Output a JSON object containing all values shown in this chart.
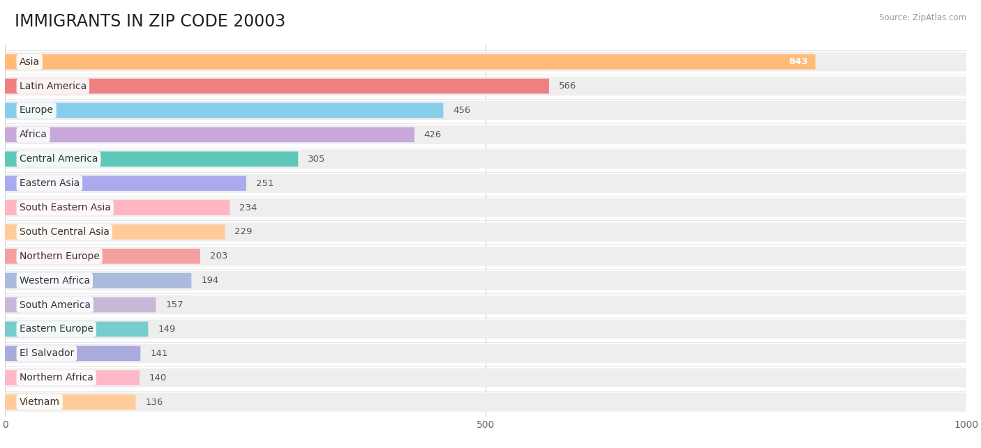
{
  "title": "IMMIGRANTS IN ZIP CODE 20003",
  "source": "Source: ZipAtlas.com",
  "categories": [
    "Asia",
    "Latin America",
    "Europe",
    "Africa",
    "Central America",
    "Eastern Asia",
    "South Eastern Asia",
    "South Central Asia",
    "Northern Europe",
    "Western Africa",
    "South America",
    "Eastern Europe",
    "El Salvador",
    "Northern Africa",
    "Vietnam"
  ],
  "values": [
    843,
    566,
    456,
    426,
    305,
    251,
    234,
    229,
    203,
    194,
    157,
    149,
    141,
    140,
    136
  ],
  "bar_colors": [
    "#FFBB77",
    "#F08080",
    "#87CEEB",
    "#C8A8D8",
    "#5EC8B8",
    "#AAAAEE",
    "#FFB6C1",
    "#FFCC99",
    "#F4A0A0",
    "#AABBDD",
    "#C8B8D8",
    "#77CCCC",
    "#AAAADD",
    "#FFB8C8",
    "#FFCC99"
  ],
  "bg_color": "#ffffff",
  "bar_bg_color": "#eeeeee",
  "xlim": [
    0,
    1000
  ],
  "xticks": [
    0,
    500,
    1000
  ],
  "title_fontsize": 17,
  "label_fontsize": 10,
  "value_fontsize": 9.5
}
